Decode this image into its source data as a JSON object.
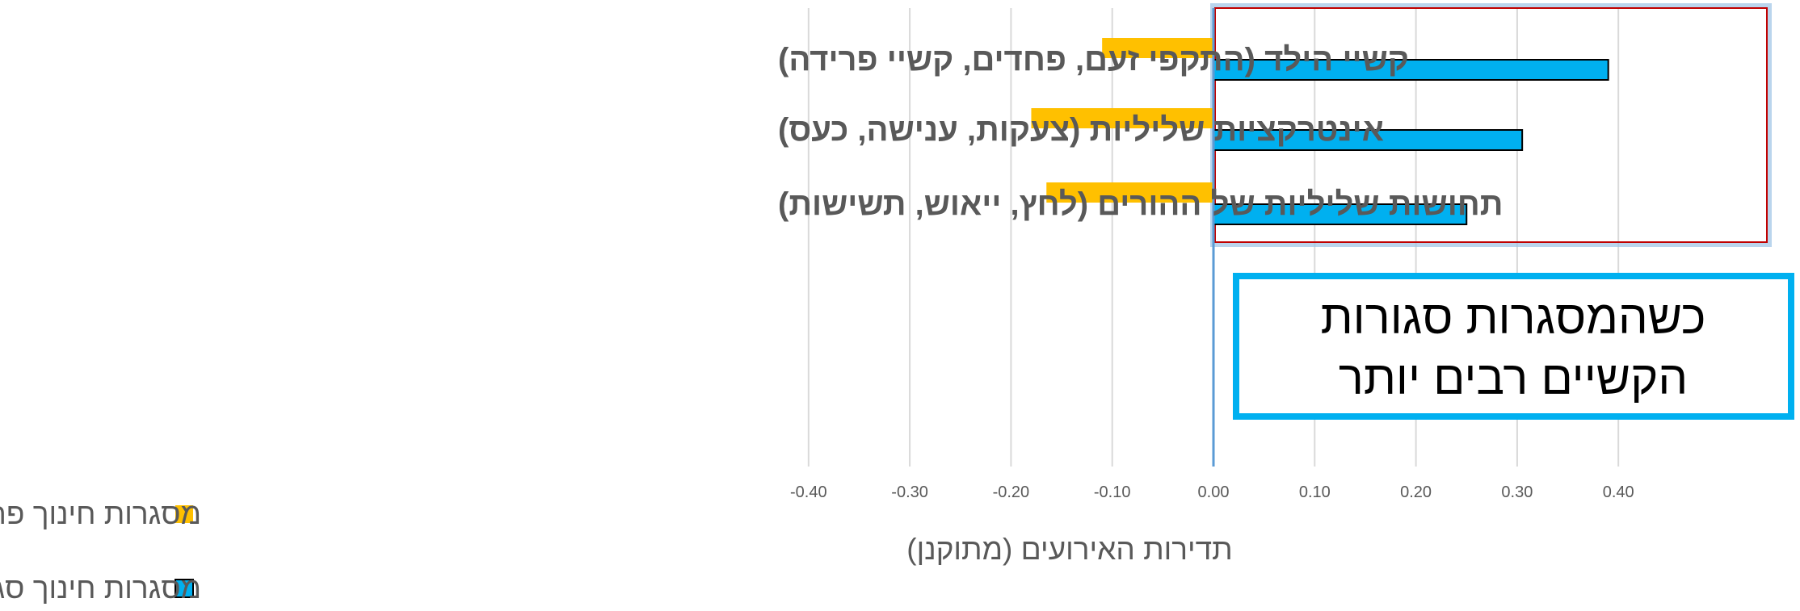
{
  "chart_data": {
    "type": "bar",
    "orientation": "horizontal",
    "categories": [
      "קשיי הילד (התקפי זעם, פחדים, קשיי פרידה)",
      "אינטרקציות שליליות (צעקות, ענישה, כעס)",
      "תחושות שליליות של ההורים (לחץ, ייאוש, תשישות)"
    ],
    "series": [
      {
        "name": "מסגרות חינוך פתוחות",
        "color": "#FFC000",
        "values": [
          -0.11,
          -0.18,
          -0.165
        ]
      },
      {
        "name": "מסגרות חינוך סגורות",
        "color": "#00B0F0",
        "values": [
          0.39,
          0.305,
          0.25
        ]
      }
    ],
    "xlabel": "תדירות האירועים (מתוקנן)",
    "xlim": [
      -0.4,
      0.4
    ],
    "xticks": [
      "-0.40",
      "-0.30",
      "-0.20",
      "-0.10",
      "0.00",
      "0.10",
      "0.20",
      "0.30",
      "0.40"
    ],
    "grid": "vertical",
    "legend_position": "bottom-left",
    "annotation": {
      "lines": [
        "כשהמסגרות סגורות",
        "הקשיים רבים יותר"
      ]
    },
    "colors": {
      "highlight_box": "#C00000",
      "highlight_glow": "#9DC3E6",
      "callout_border": "#00B0F0",
      "zero_line": "#5B9BD5",
      "grid": "#D9D9D9"
    }
  }
}
